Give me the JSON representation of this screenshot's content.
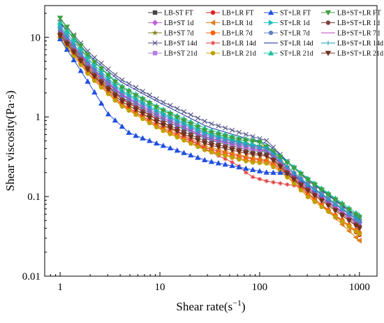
{
  "chart_data": {
    "type": "line",
    "title": "",
    "xlabel": "Shear rate(s",
    "xlabel_sup": "−1",
    "xlabel_close": ")",
    "ylabel": "Shear viscosity(Pa·s)",
    "x_scale": "log",
    "y_scale": "log",
    "xlim": [
      0.7,
      1500
    ],
    "ylim": [
      0.01,
      25
    ],
    "x_ticks": [
      1,
      10,
      100,
      1000
    ],
    "x_tick_labels": [
      "1",
      "10",
      "100",
      "1000"
    ],
    "y_ticks": [
      0.01,
      0.1,
      1,
      10
    ],
    "y_tick_labels": [
      "0.01",
      "0.1",
      "1",
      "10"
    ],
    "grid": false,
    "legend_position": "top-right",
    "legend_columns": 4,
    "x": [
      1,
      1.17,
      1.37,
      1.61,
      1.89,
      2.21,
      2.59,
      3.04,
      3.56,
      4.18,
      4.89,
      5.74,
      6.72,
      7.88,
      9.24,
      10.8,
      12.7,
      14.9,
      17.4,
      20.4,
      24,
      28.1,
      32.9,
      38.6,
      45.2,
      53,
      62.1,
      72.8,
      85.3,
      100,
      117,
      137,
      161,
      189,
      221,
      259,
      304,
      356,
      418,
      489,
      574,
      672,
      788,
      924,
      1000
    ],
    "series": [
      {
        "name": "LB-ST FT",
        "color": "#444444",
        "marker": "square",
        "anchors": [
          [
            1,
            11.5
          ],
          [
            2,
            4.0
          ],
          [
            4,
            1.8
          ],
          [
            10,
            0.95
          ],
          [
            30,
            0.52
          ],
          [
            80,
            0.38
          ],
          [
            120,
            0.36
          ],
          [
            150,
            0.28
          ],
          [
            200,
            0.2
          ],
          [
            300,
            0.13
          ],
          [
            1000,
            0.045
          ]
        ]
      },
      {
        "name": "LB+ST 1d",
        "color": "#c060e0",
        "marker": "diamond",
        "anchors": [
          [
            1,
            13.5
          ],
          [
            2,
            4.4
          ],
          [
            4,
            2.0
          ],
          [
            10,
            1.05
          ],
          [
            30,
            0.58
          ],
          [
            80,
            0.43
          ],
          [
            120,
            0.4
          ],
          [
            150,
            0.3
          ],
          [
            200,
            0.21
          ],
          [
            300,
            0.14
          ],
          [
            1000,
            0.048
          ]
        ]
      },
      {
        "name": "LB+ST 7d",
        "color": "#808020",
        "marker": "star",
        "anchors": [
          [
            1,
            16
          ],
          [
            2,
            5.0
          ],
          [
            4,
            2.2
          ],
          [
            10,
            1.15
          ],
          [
            30,
            0.62
          ],
          [
            80,
            0.45
          ],
          [
            120,
            0.42
          ],
          [
            150,
            0.32
          ],
          [
            200,
            0.22
          ],
          [
            300,
            0.145
          ],
          [
            1000,
            0.05
          ]
        ]
      },
      {
        "name": "LB+ST 14d",
        "color": "#555588",
        "marker": "x",
        "anchors": [
          [
            1,
            17
          ],
          [
            2,
            6.2
          ],
          [
            4,
            3.0
          ],
          [
            10,
            1.6
          ],
          [
            30,
            0.85
          ],
          [
            80,
            0.58
          ],
          [
            120,
            0.5
          ],
          [
            150,
            0.37
          ],
          [
            200,
            0.26
          ],
          [
            300,
            0.16
          ],
          [
            1000,
            0.055
          ]
        ]
      },
      {
        "name": "LB+ST 21d",
        "color": "#b080e0",
        "marker": "square",
        "anchors": [
          [
            1,
            12.5
          ],
          [
            2,
            4.2
          ],
          [
            4,
            1.9
          ],
          [
            10,
            1.0
          ],
          [
            30,
            0.55
          ],
          [
            80,
            0.4
          ],
          [
            120,
            0.38
          ],
          [
            150,
            0.29
          ],
          [
            200,
            0.2
          ],
          [
            300,
            0.135
          ],
          [
            1000,
            0.046
          ]
        ]
      },
      {
        "name": "LB+LR FT",
        "color": "#e02020",
        "marker": "circle",
        "anchors": [
          [
            1,
            10.5
          ],
          [
            2,
            3.5
          ],
          [
            4,
            1.5
          ],
          [
            10,
            0.75
          ],
          [
            30,
            0.4
          ],
          [
            80,
            0.3
          ],
          [
            120,
            0.28
          ],
          [
            150,
            0.24
          ],
          [
            200,
            0.18
          ],
          [
            300,
            0.11
          ],
          [
            1000,
            0.033
          ]
        ]
      },
      {
        "name": "LB+LR 1d",
        "color": "#e08020",
        "marker": "triangle-left",
        "anchors": [
          [
            1,
            11
          ],
          [
            2,
            3.7
          ],
          [
            4,
            1.6
          ],
          [
            10,
            0.8
          ],
          [
            30,
            0.42
          ],
          [
            80,
            0.31
          ],
          [
            120,
            0.29
          ],
          [
            150,
            0.25
          ],
          [
            200,
            0.19
          ],
          [
            300,
            0.115
          ],
          [
            1000,
            0.028
          ]
        ]
      },
      {
        "name": "LB+LR 7d",
        "color": "#ff6000",
        "marker": "hexagon",
        "anchors": [
          [
            1,
            10
          ],
          [
            2,
            3.3
          ],
          [
            4,
            1.45
          ],
          [
            10,
            0.72
          ],
          [
            30,
            0.38
          ],
          [
            80,
            0.28
          ],
          [
            120,
            0.27
          ],
          [
            150,
            0.23
          ],
          [
            200,
            0.17
          ],
          [
            300,
            0.105
          ],
          [
            1000,
            0.035
          ]
        ]
      },
      {
        "name": "LB+LR 14d",
        "color": "#e04040",
        "marker": "asterisk",
        "anchors": [
          [
            1,
            12
          ],
          [
            2,
            4.0
          ],
          [
            4,
            1.75
          ],
          [
            10,
            0.9
          ],
          [
            30,
            0.38
          ],
          [
            60,
            0.25
          ],
          [
            80,
            0.18
          ],
          [
            120,
            0.155
          ],
          [
            200,
            0.14
          ],
          [
            250,
            0.135
          ],
          [
            300,
            0.12
          ],
          [
            1000,
            0.04
          ]
        ]
      },
      {
        "name": "LB+LR 21d",
        "color": "#c0a000",
        "marker": "circle",
        "anchors": [
          [
            1,
            9.5
          ],
          [
            2,
            3.2
          ],
          [
            4,
            1.4
          ],
          [
            10,
            0.7
          ],
          [
            30,
            0.37
          ],
          [
            80,
            0.27
          ],
          [
            120,
            0.26
          ],
          [
            150,
            0.22
          ],
          [
            200,
            0.165
          ],
          [
            300,
            0.1
          ],
          [
            1000,
            0.034
          ]
        ]
      },
      {
        "name": "ST+LR FT",
        "color": "#2050e0",
        "marker": "triangle-up",
        "anchors": [
          [
            1,
            9.5
          ],
          [
            2,
            2.5
          ],
          [
            3,
            1.1
          ],
          [
            5,
            0.62
          ],
          [
            10,
            0.45
          ],
          [
            30,
            0.28
          ],
          [
            80,
            0.22
          ],
          [
            120,
            0.2
          ],
          [
            200,
            0.2
          ],
          [
            300,
            0.14
          ],
          [
            1000,
            0.05
          ]
        ]
      },
      {
        "name": "ST+LR 1d",
        "color": "#20c0c0",
        "marker": "triangle-right",
        "anchors": [
          [
            1,
            14
          ],
          [
            2,
            5.0
          ],
          [
            4,
            2.2
          ],
          [
            10,
            1.15
          ],
          [
            30,
            0.62
          ],
          [
            60,
            0.5
          ],
          [
            80,
            0.46
          ],
          [
            100,
            0.42
          ],
          [
            150,
            0.34
          ],
          [
            200,
            0.26
          ],
          [
            300,
            0.17
          ],
          [
            1000,
            0.055
          ]
        ]
      },
      {
        "name": "ST+LR 7d",
        "color": "#6080c0",
        "marker": "circle",
        "anchors": [
          [
            1,
            12
          ],
          [
            2,
            4.2
          ],
          [
            4,
            1.9
          ],
          [
            10,
            1.0
          ],
          [
            30,
            0.55
          ],
          [
            80,
            0.42
          ],
          [
            120,
            0.38
          ],
          [
            150,
            0.3
          ],
          [
            200,
            0.22
          ],
          [
            300,
            0.145
          ],
          [
            1000,
            0.048
          ]
        ]
      },
      {
        "name": "ST+LR 14d",
        "color": "#2030a0",
        "marker": "none",
        "anchors": [
          [
            1,
            15
          ],
          [
            2,
            5.8
          ],
          [
            4,
            2.8
          ],
          [
            10,
            1.5
          ],
          [
            30,
            0.75
          ],
          [
            80,
            0.52
          ],
          [
            120,
            0.46
          ],
          [
            150,
            0.36
          ],
          [
            200,
            0.26
          ],
          [
            300,
            0.165
          ],
          [
            1000,
            0.052
          ]
        ]
      },
      {
        "name": "ST+LR 21d",
        "color": "#20c0a0",
        "marker": "triangle-up",
        "anchors": [
          [
            1,
            15.5
          ],
          [
            2,
            5.5
          ],
          [
            4,
            2.5
          ],
          [
            10,
            1.3
          ],
          [
            30,
            0.7
          ],
          [
            60,
            0.55
          ],
          [
            80,
            0.52
          ],
          [
            100,
            0.5
          ],
          [
            120,
            0.42
          ],
          [
            150,
            0.34
          ],
          [
            200,
            0.26
          ],
          [
            300,
            0.17
          ],
          [
            1000,
            0.058
          ]
        ]
      },
      {
        "name": "LB+ST+LR FT",
        "color": "#40a040",
        "marker": "triangle-down",
        "anchors": [
          [
            1,
            17.5
          ],
          [
            2,
            5.5
          ],
          [
            4,
            2.4
          ],
          [
            10,
            1.25
          ],
          [
            30,
            0.65
          ],
          [
            60,
            0.52
          ],
          [
            80,
            0.5
          ],
          [
            100,
            0.48
          ],
          [
            150,
            0.34
          ],
          [
            200,
            0.25
          ],
          [
            300,
            0.165
          ],
          [
            1000,
            0.055
          ]
        ]
      },
      {
        "name": "LB+ST+LR 1d",
        "color": "#804040",
        "marker": "circle",
        "anchors": [
          [
            1,
            11
          ],
          [
            2,
            3.8
          ],
          [
            4,
            1.7
          ],
          [
            10,
            0.88
          ],
          [
            30,
            0.48
          ],
          [
            80,
            0.36
          ],
          [
            120,
            0.33
          ],
          [
            150,
            0.27
          ],
          [
            200,
            0.19
          ],
          [
            300,
            0.125
          ],
          [
            1000,
            0.042
          ]
        ]
      },
      {
        "name": "LB+ST+LR 7d",
        "color": "#c040c0",
        "marker": "none",
        "anchors": [
          [
            1,
            12.5
          ],
          [
            2,
            4.3
          ],
          [
            4,
            1.95
          ],
          [
            10,
            1.0
          ],
          [
            30,
            0.54
          ],
          [
            80,
            0.4
          ],
          [
            120,
            0.37
          ],
          [
            150,
            0.29
          ],
          [
            200,
            0.2
          ],
          [
            300,
            0.13
          ],
          [
            1000,
            0.044
          ]
        ]
      },
      {
        "name": "LB+ST+LR 14d",
        "color": "#20a0c0",
        "marker": "plus",
        "anchors": [
          [
            1,
            13
          ],
          [
            2,
            4.6
          ],
          [
            4,
            2.1
          ],
          [
            10,
            1.1
          ],
          [
            30,
            0.6
          ],
          [
            80,
            0.44
          ],
          [
            120,
            0.41
          ],
          [
            150,
            0.31
          ],
          [
            200,
            0.22
          ],
          [
            300,
            0.14
          ],
          [
            1000,
            0.05
          ]
        ]
      },
      {
        "name": "LB+ST+LR 21d",
        "color": "#703020",
        "marker": "triangle-down",
        "anchors": [
          [
            1,
            10.5
          ],
          [
            2,
            3.6
          ],
          [
            4,
            1.6
          ],
          [
            10,
            0.82
          ],
          [
            30,
            0.45
          ],
          [
            80,
            0.34
          ],
          [
            120,
            0.32
          ],
          [
            150,
            0.26
          ],
          [
            200,
            0.18
          ],
          [
            300,
            0.12
          ],
          [
            1000,
            0.04
          ]
        ]
      }
    ]
  }
}
